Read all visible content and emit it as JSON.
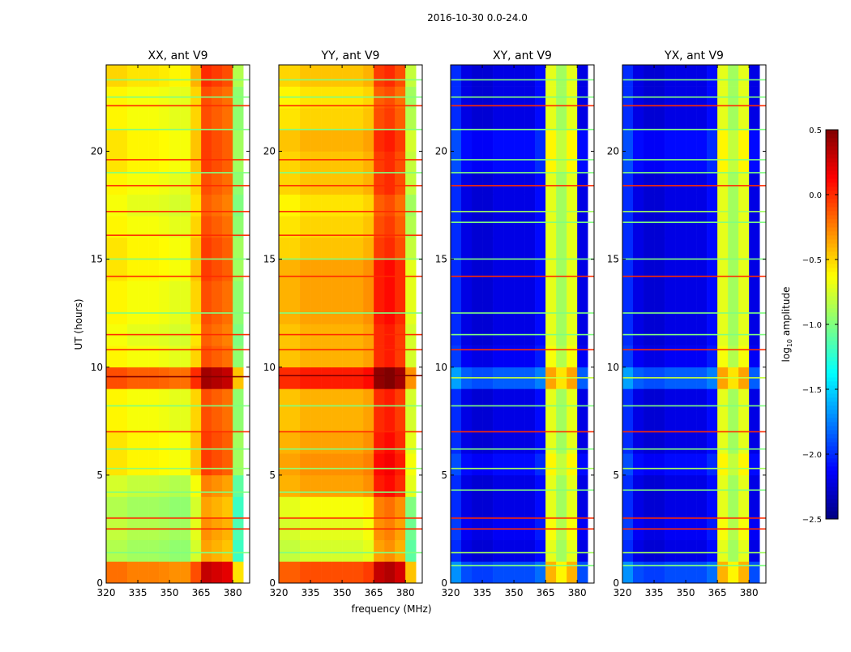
{
  "chart_data": {
    "type": "heatmap",
    "title": "2016-10-30 0.0-24.0",
    "xlabel": "frequency (MHz)",
    "ylabel": "UT (hours)",
    "xlim": [
      320,
      388
    ],
    "ylim": [
      0,
      24
    ],
    "xticks": [
      320,
      335,
      350,
      365,
      380
    ],
    "yticks": [
      0,
      5,
      10,
      15,
      20
    ],
    "freq_bins": [
      320,
      325,
      330,
      335,
      340,
      345,
      350,
      355,
      360,
      365,
      370,
      375,
      380,
      385
    ],
    "time_bins_hours": 1,
    "note_model": "value = freq_profile[f] + time_profile[t]",
    "colorbar": {
      "label": "log10 amplitude",
      "label_main": "log",
      "label_sub": "10",
      "label_rest": " amplitude",
      "range": [
        -2.5,
        0.5
      ],
      "ticks": [
        "0.5",
        "0.0",
        "−0.5",
        "−1.0",
        "−1.5",
        "−2.0",
        "−2.5"
      ],
      "tick_values": [
        0.5,
        0.0,
        -0.5,
        -1.0,
        -1.5,
        -2.0,
        -2.5
      ],
      "colormap": "jet"
    },
    "panels": [
      {
        "title": "XX, ant V9",
        "freq_profile": [
          -0.55,
          -0.55,
          -0.6,
          -0.6,
          -0.6,
          -0.62,
          -0.65,
          -0.65,
          -0.45,
          -0.05,
          -0.1,
          -0.15,
          -0.9
        ],
        "time_profile": [
          0.35,
          -0.3,
          -0.25,
          -0.3,
          -0.2,
          0.0,
          0.0,
          -0.05,
          -0.05,
          0.45,
          -0.05,
          -0.1,
          -0.05,
          -0.05,
          0.0,
          0.0,
          -0.05,
          -0.1,
          -0.05,
          0.0,
          0.0,
          -0.05,
          -0.05,
          0.05
        ],
        "flag_lines": [
          {
            "t": 1.4,
            "v": -1.0
          },
          {
            "t": 2.5,
            "v": 0.0
          },
          {
            "t": 3.0,
            "v": 0.0
          },
          {
            "t": 4.2,
            "v": -1.0
          },
          {
            "t": 5.3,
            "v": -0.95
          },
          {
            "t": 6.2,
            "v": -1.0
          },
          {
            "t": 7.0,
            "v": 0.0
          },
          {
            "t": 8.2,
            "v": -1.0
          },
          {
            "t": 9.55,
            "v": 0.5
          },
          {
            "t": 10.8,
            "v": 0.0
          },
          {
            "t": 11.5,
            "v": 0.0
          },
          {
            "t": 12.5,
            "v": -1.0
          },
          {
            "t": 14.2,
            "v": 0.0
          },
          {
            "t": 15.0,
            "v": -1.0
          },
          {
            "t": 16.1,
            "v": 0.0
          },
          {
            "t": 17.2,
            "v": 0.0
          },
          {
            "t": 18.4,
            "v": 0.0
          },
          {
            "t": 19.0,
            "v": -1.0
          },
          {
            "t": 19.6,
            "v": 0.0
          },
          {
            "t": 21.0,
            "v": -1.0
          },
          {
            "t": 22.1,
            "v": 0.0
          },
          {
            "t": 22.5,
            "v": -1.0
          },
          {
            "t": 23.3,
            "v": -1.0
          }
        ]
      },
      {
        "title": "YY, ant V9",
        "freq_profile": [
          -0.4,
          -0.4,
          -0.35,
          -0.35,
          -0.35,
          -0.35,
          -0.35,
          -0.35,
          -0.3,
          0.05,
          0.1,
          0.0,
          -0.7
        ],
        "time_profile": [
          0.25,
          -0.4,
          -0.35,
          -0.3,
          0.0,
          0.05,
          0.0,
          -0.05,
          -0.05,
          0.4,
          -0.05,
          -0.05,
          0.0,
          0.0,
          0.0,
          -0.1,
          -0.15,
          -0.2,
          -0.1,
          -0.1,
          -0.05,
          -0.15,
          -0.2,
          -0.1
        ],
        "flag_lines": [
          {
            "t": 1.4,
            "v": -1.0
          },
          {
            "t": 2.5,
            "v": 0.0
          },
          {
            "t": 3.0,
            "v": 0.0
          },
          {
            "t": 4.2,
            "v": -1.0
          },
          {
            "t": 5.3,
            "v": -0.95
          },
          {
            "t": 6.2,
            "v": -1.0
          },
          {
            "t": 7.0,
            "v": 0.0
          },
          {
            "t": 8.2,
            "v": -1.0
          },
          {
            "t": 9.6,
            "v": 0.5
          },
          {
            "t": 10.8,
            "v": 0.0
          },
          {
            "t": 11.5,
            "v": 0.0
          },
          {
            "t": 12.5,
            "v": -1.0
          },
          {
            "t": 14.2,
            "v": 0.0
          },
          {
            "t": 15.0,
            "v": -1.0
          },
          {
            "t": 16.1,
            "v": 0.0
          },
          {
            "t": 17.2,
            "v": 0.0
          },
          {
            "t": 18.4,
            "v": 0.0
          },
          {
            "t": 19.0,
            "v": -1.0
          },
          {
            "t": 19.6,
            "v": 0.0
          },
          {
            "t": 21.0,
            "v": -1.0
          },
          {
            "t": 22.1,
            "v": 0.0
          },
          {
            "t": 22.5,
            "v": -1.0
          },
          {
            "t": 23.3,
            "v": -1.0
          }
        ]
      },
      {
        "title": "XY, ant V9",
        "freq_profile": [
          -2.0,
          -2.2,
          -2.25,
          -2.25,
          -2.2,
          -2.2,
          -2.2,
          -2.2,
          -2.1,
          -0.7,
          -0.9,
          -0.7,
          -2.2
        ],
        "time_profile": [
          0.3,
          0.0,
          0.05,
          0.0,
          0.0,
          0.1,
          0.0,
          0.0,
          0.0,
          0.35,
          0.05,
          0.0,
          0.0,
          0.0,
          0.0,
          0.0,
          0.0,
          0.0,
          0.0,
          0.1,
          0.1,
          0.0,
          0.0,
          0.0
        ],
        "flag_lines": [
          {
            "t": 0.8,
            "v": -1.0
          },
          {
            "t": 1.4,
            "v": -0.9
          },
          {
            "t": 2.5,
            "v": 0.0
          },
          {
            "t": 3.0,
            "v": 0.0
          },
          {
            "t": 4.3,
            "v": -1.0
          },
          {
            "t": 5.3,
            "v": -0.9
          },
          {
            "t": 6.2,
            "v": -1.0
          },
          {
            "t": 7.0,
            "v": 0.0
          },
          {
            "t": 8.2,
            "v": -1.0
          },
          {
            "t": 9.5,
            "v": -0.8
          },
          {
            "t": 10.8,
            "v": 0.0
          },
          {
            "t": 11.5,
            "v": -1.0
          },
          {
            "t": 12.5,
            "v": -1.0
          },
          {
            "t": 14.2,
            "v": 0.0
          },
          {
            "t": 15.0,
            "v": -1.0
          },
          {
            "t": 16.7,
            "v": -1.0
          },
          {
            "t": 17.2,
            "v": -0.9
          },
          {
            "t": 18.4,
            "v": 0.0
          },
          {
            "t": 19.0,
            "v": -1.0
          },
          {
            "t": 19.6,
            "v": -1.0
          },
          {
            "t": 21.0,
            "v": -1.0
          },
          {
            "t": 22.1,
            "v": 0.0
          },
          {
            "t": 22.5,
            "v": -1.0
          },
          {
            "t": 23.3,
            "v": -1.0
          }
        ]
      },
      {
        "title": "YX, ant V9",
        "freq_profile": [
          -2.0,
          -2.2,
          -2.25,
          -2.25,
          -2.2,
          -2.2,
          -2.2,
          -2.2,
          -2.1,
          -0.7,
          -0.9,
          -0.7,
          -2.2
        ],
        "time_profile": [
          0.3,
          0.0,
          0.05,
          0.0,
          0.0,
          0.1,
          0.0,
          0.0,
          0.0,
          0.35,
          0.05,
          0.0,
          0.0,
          0.0,
          0.0,
          0.0,
          0.0,
          0.0,
          0.0,
          0.1,
          0.1,
          0.0,
          0.0,
          0.0
        ],
        "flag_lines": [
          {
            "t": 0.8,
            "v": -1.0
          },
          {
            "t": 1.4,
            "v": -0.9
          },
          {
            "t": 2.5,
            "v": 0.0
          },
          {
            "t": 3.0,
            "v": 0.0
          },
          {
            "t": 4.3,
            "v": -1.0
          },
          {
            "t": 5.3,
            "v": -0.9
          },
          {
            "t": 6.2,
            "v": -1.0
          },
          {
            "t": 7.0,
            "v": 0.0
          },
          {
            "t": 8.2,
            "v": -1.0
          },
          {
            "t": 9.5,
            "v": -0.8
          },
          {
            "t": 10.8,
            "v": 0.0
          },
          {
            "t": 11.5,
            "v": -1.0
          },
          {
            "t": 12.5,
            "v": -1.0
          },
          {
            "t": 14.2,
            "v": 0.0
          },
          {
            "t": 15.0,
            "v": -1.0
          },
          {
            "t": 16.7,
            "v": -1.0
          },
          {
            "t": 17.2,
            "v": -0.9
          },
          {
            "t": 18.4,
            "v": 0.0
          },
          {
            "t": 19.0,
            "v": -1.0
          },
          {
            "t": 19.6,
            "v": -1.0
          },
          {
            "t": 21.0,
            "v": -1.0
          },
          {
            "t": 22.1,
            "v": 0.0
          },
          {
            "t": 22.5,
            "v": -1.0
          },
          {
            "t": 23.3,
            "v": -1.0
          }
        ]
      }
    ]
  }
}
